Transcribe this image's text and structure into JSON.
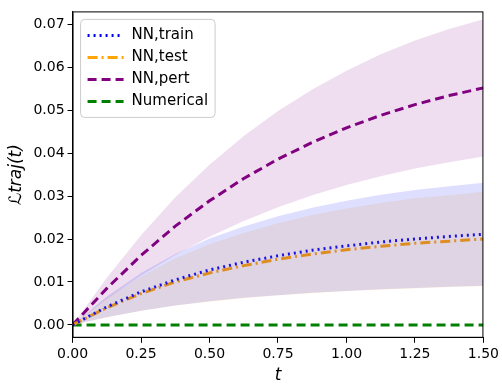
{
  "chart_data": {
    "type": "line",
    "x_label": "t",
    "y_label": "ℒtraj(t)",
    "x": [
      0,
      0.125,
      0.25,
      0.375,
      0.5,
      0.625,
      0.75,
      0.875,
      1.0,
      1.125,
      1.25,
      1.375,
      1.5
    ],
    "series": [
      {
        "name": "NN,train",
        "color": "#0000ff",
        "line_style": "dotted",
        "values": [
          0,
          0.0042,
          0.0077,
          0.0105,
          0.0128,
          0.0146,
          0.0161,
          0.0174,
          0.0184,
          0.0193,
          0.02,
          0.0206,
          0.0211
        ],
        "lower": [
          0,
          0.0018,
          0.0033,
          0.0045,
          0.0055,
          0.0063,
          0.0069,
          0.0075,
          0.0079,
          0.0083,
          0.0086,
          0.0089,
          0.0091
        ],
        "upper": [
          0,
          0.0066,
          0.0121,
          0.0165,
          0.0201,
          0.0229,
          0.0253,
          0.0273,
          0.0289,
          0.0303,
          0.0314,
          0.0323,
          0.0331
        ]
      },
      {
        "name": "NN,test",
        "color": "#ffa500",
        "line_style": "dashdot",
        "values": [
          0,
          0.004,
          0.0073,
          0.01,
          0.0121,
          0.0138,
          0.0153,
          0.0165,
          0.0175,
          0.0183,
          0.019,
          0.0195,
          0.02
        ],
        "lower": [
          0,
          0.0018,
          0.0033,
          0.0045,
          0.0054,
          0.0062,
          0.0069,
          0.0074,
          0.0079,
          0.0082,
          0.0085,
          0.0088,
          0.009
        ],
        "upper": [
          0,
          0.0062,
          0.0113,
          0.0155,
          0.0188,
          0.0214,
          0.0237,
          0.0256,
          0.0271,
          0.0284,
          0.0295,
          0.0302,
          0.031
        ]
      },
      {
        "name": "NN,pert",
        "color": "#800080",
        "line_style": "dashed",
        "values": [
          0,
          0.0085,
          0.0162,
          0.023,
          0.0289,
          0.0341,
          0.0386,
          0.0425,
          0.0459,
          0.0488,
          0.0513,
          0.0534,
          0.0552
        ],
        "lower": [
          0,
          0.006,
          0.0115,
          0.0163,
          0.0205,
          0.0242,
          0.0274,
          0.0302,
          0.0326,
          0.0346,
          0.0364,
          0.0379,
          0.0392
        ],
        "upper": [
          0,
          0.011,
          0.0209,
          0.0297,
          0.0373,
          0.044,
          0.0498,
          0.0548,
          0.0592,
          0.063,
          0.0662,
          0.0689,
          0.0712
        ]
      },
      {
        "name": "Numerical",
        "color": "#008000",
        "line_style": "dashed",
        "values": [
          0,
          0,
          0,
          0,
          0,
          0,
          0,
          0,
          0,
          0,
          0,
          0,
          0
        ]
      }
    ],
    "xlim": [
      0,
      1.5
    ],
    "xticks": [
      {
        "value": 0,
        "label": "0.00"
      },
      {
        "value": 0.25,
        "label": "0.25"
      },
      {
        "value": 0.5,
        "label": "0.50"
      },
      {
        "value": 0.75,
        "label": "0.75"
      },
      {
        "value": 1.0,
        "label": "1.00"
      },
      {
        "value": 1.25,
        "label": "1.25"
      },
      {
        "value": 1.5,
        "label": "1.50"
      }
    ],
    "ylim": [
      -0.003,
      0.073
    ],
    "yticks": [
      {
        "value": 0,
        "label": "0.00"
      },
      {
        "value": 0.01,
        "label": "0.01"
      },
      {
        "value": 0.02,
        "label": "0.02"
      },
      {
        "value": 0.03,
        "label": "0.03"
      },
      {
        "value": 0.04,
        "label": "0.04"
      },
      {
        "value": 0.05,
        "label": "0.05"
      },
      {
        "value": 0.06,
        "label": "0.06"
      },
      {
        "value": 0.07,
        "label": "0.07"
      }
    ],
    "grid": false,
    "legend": "upper left"
  }
}
